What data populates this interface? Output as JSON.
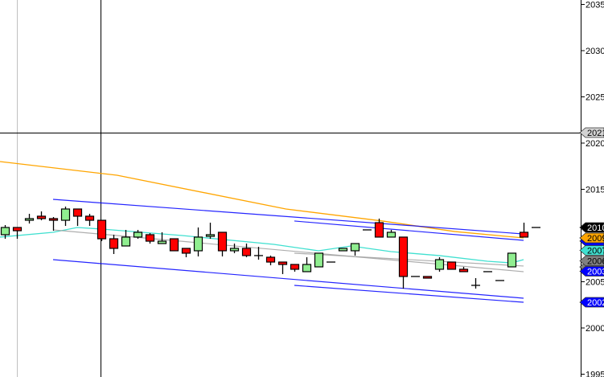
{
  "chart_data": {
    "type": "candlestick",
    "title": "",
    "xlabel": "",
    "ylabel": "",
    "ylim": [
      1995,
      2035
    ],
    "y_ticks": [
      "2035",
      "2030",
      "2025",
      "2020",
      "2015",
      "2005",
      "2000",
      "1995"
    ],
    "grid": false,
    "colors": {
      "up": "#90EE90",
      "down": "#FF0000",
      "outline": "#000000"
    },
    "candles": [
      [
        2010.09,
        2011.13,
        2009.65,
        2010.87
      ],
      [
        2010.87,
        2010.87,
        2009.65,
        2010.52
      ],
      [
        2011.65,
        2012.35,
        2011.3,
        2011.83
      ],
      [
        2012.09,
        2012.61,
        2011.65,
        2011.83
      ],
      [
        2011.83,
        2012.0,
        2010.52,
        2011.65
      ],
      [
        2011.65,
        2013.13,
        2011.04,
        2012.87
      ],
      [
        2012.87,
        2012.87,
        2011.04,
        2012.09
      ],
      [
        2012.09,
        2012.35,
        2011.04,
        2011.65
      ],
      [
        2011.65,
        2011.65,
        2009.39,
        2009.65
      ],
      [
        2009.65,
        2010.09,
        2008.0,
        2008.61
      ],
      [
        2008.87,
        2010.61,
        2008.87,
        2009.83
      ],
      [
        2009.83,
        2010.61,
        2009.65,
        2010.35
      ],
      [
        2010.09,
        2010.26,
        2009.13,
        2009.39
      ],
      [
        2009.13,
        2010.35,
        2009.13,
        2009.39
      ],
      [
        2009.65,
        2009.65,
        2008.35,
        2008.35
      ],
      [
        2008.61,
        2008.61,
        2007.65,
        2008.09
      ],
      [
        2008.35,
        2010.87,
        2007.74,
        2009.83
      ],
      [
        2009.91,
        2011.39,
        2009.65,
        2010.09
      ],
      [
        2010.35,
        2010.35,
        2007.74,
        2008.35
      ],
      [
        2008.35,
        2009.13,
        2008.09,
        2008.61
      ],
      [
        2008.61,
        2009.13,
        2007.65,
        2007.83
      ],
      [
        2007.83,
        2008.78,
        2007.39,
        2007.83
      ],
      [
        2007.65,
        2007.83,
        2006.78,
        2007.13
      ],
      [
        2007.13,
        2007.13,
        2005.83,
        2006.87
      ],
      [
        2006.87,
        2006.87,
        2006.09,
        2006.35
      ],
      [
        2006.09,
        2007.65,
        2006.09,
        2006.87
      ],
      [
        2006.61,
        2008.09,
        2006.61,
        2008.09
      ],
      [
        2007.13,
        2007.13,
        2007.13,
        2007.13
      ],
      [
        2008.35,
        2008.61,
        2008.35,
        2008.61
      ],
      [
        2008.35,
        2009.13,
        2007.83,
        2009.13
      ],
      [
        2010.61,
        2010.61,
        2010.61,
        2010.61
      ],
      [
        2011.39,
        2011.83,
        2009.83,
        2009.83
      ],
      [
        2009.83,
        2010.61,
        2009.83,
        2010.35
      ],
      [
        2009.83,
        2009.83,
        2004.26,
        2005.57
      ],
      [
        2005.57,
        2005.57,
        2005.57,
        2005.57
      ],
      [
        2005.57,
        2005.57,
        2005.39,
        2005.39
      ],
      [
        2006.35,
        2007.65,
        2006.09,
        2007.39
      ],
      [
        2007.13,
        2007.13,
        2006.35,
        2006.35
      ],
      [
        2006.35,
        2006.61,
        2006.09,
        2006.09
      ],
      [
        2004.61,
        2005.39,
        2004.26,
        2004.61
      ],
      [
        2006.09,
        2006.09,
        2006.09,
        2006.09
      ],
      [
        2005.13,
        2005.13,
        2005.13,
        2005.13
      ],
      [
        2006.61,
        2008.09,
        2006.61,
        2008.09
      ],
      [
        2010.35,
        2011.39,
        2009.83,
        2009.83
      ],
      [
        2010.87,
        2010.87,
        2010.87,
        2010.87
      ]
    ],
    "trend_lines": [
      {
        "color": "#0000FF",
        "points": [
          [
            5,
            2013.91
          ],
          [
            44,
            2010.17
          ]
        ]
      },
      {
        "color": "#0000FF",
        "points": [
          [
            5,
            2007.39
          ],
          [
            44,
            2003.22
          ]
        ]
      },
      {
        "color": "#0000FF",
        "points": [
          [
            25,
            2011.57
          ],
          [
            44,
            2009.48
          ]
        ]
      },
      {
        "color": "#0000FF",
        "points": [
          [
            25,
            2004.61
          ],
          [
            44,
            2002.78
          ]
        ]
      },
      {
        "color": "#A0A0A0",
        "points": [
          [
            5,
            2010.61
          ],
          [
            44,
            2006.09
          ]
        ]
      },
      {
        "color": "#A0A0A0",
        "points": [
          [
            25,
            2008.09
          ],
          [
            44,
            2006.7
          ]
        ]
      }
    ],
    "moving_averages": [
      {
        "color": "#FFA500",
        "points": [
          [
            0.6,
            2018.0
          ],
          [
            10.3,
            2016.52
          ],
          [
            24.3,
            2012.87
          ],
          [
            32.3,
            2011.57
          ],
          [
            38.3,
            2010.43
          ],
          [
            44,
            2009.74
          ]
        ]
      },
      {
        "color": "#40E0D0",
        "points": [
          [
            0.6,
            2009.83
          ],
          [
            5,
            2010.35
          ],
          [
            7,
            2010.87
          ],
          [
            9,
            2010.7
          ],
          [
            15.7,
            2010.0
          ],
          [
            23.3,
            2009.04
          ],
          [
            27,
            2008.35
          ],
          [
            29.7,
            2008.87
          ],
          [
            33,
            2008.26
          ],
          [
            37,
            2007.83
          ],
          [
            41,
            2007.22
          ],
          [
            43,
            2007.04
          ],
          [
            44,
            2007.39
          ]
        ]
      }
    ],
    "crosshair": {
      "bar": 8.9,
      "price": 2021.13
    },
    "price_tags": [
      {
        "label": "2021",
        "price": 2021.13,
        "bg": "#D3D3D3",
        "fg": "#000000"
      },
      {
        "label": "2010",
        "price": 2010.87,
        "bg": "#000000",
        "fg": "#FFFFFF"
      },
      {
        "label": "",
        "price": 2009.4,
        "bg": "#0000FF",
        "fg": "#FFFFFF"
      },
      {
        "label": "2009",
        "price": 2009.74,
        "bg": "#FFA500",
        "fg": "#000000"
      },
      {
        "label": "",
        "price": 2006.6,
        "bg": "#808080",
        "fg": "#000000"
      },
      {
        "label": "2007",
        "price": 2007.39,
        "bg": "#40E0D0",
        "fg": "#000000"
      },
      {
        "label": "2006",
        "price": 2006.09,
        "bg": "#808080",
        "fg": "#000000"
      },
      {
        "label": "2003",
        "price": 2003.22,
        "bg": "#0000FF",
        "fg": "#FFFFFF"
      },
      {
        "label": "2002",
        "price": 2002.78,
        "bg": "#0000FF",
        "fg": "#FFFFFF"
      }
    ]
  }
}
